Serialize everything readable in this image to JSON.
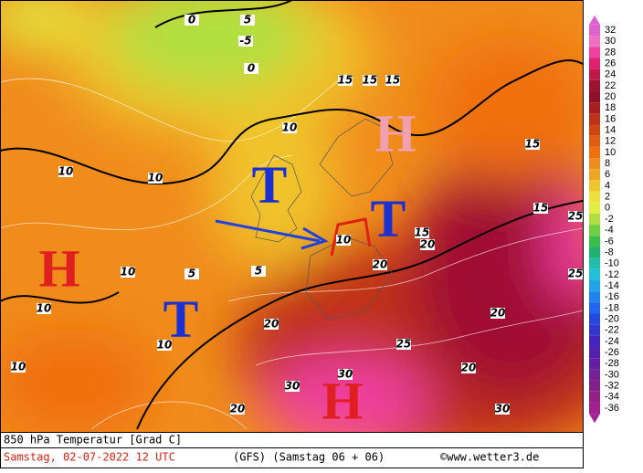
{
  "footer": {
    "title": "850 hPa Temperatur [Grad C]",
    "date": "Samstag, 02-07-2022  12 UTC",
    "model": "(GFS)   (Samstag 06 + 06)",
    "source": "©www.wetter3.de"
  },
  "colorbar": {
    "ticks": [
      32,
      30,
      28,
      26,
      24,
      22,
      20,
      18,
      16,
      14,
      12,
      10,
      8,
      6,
      4,
      2,
      0,
      -2,
      -4,
      -6,
      -8,
      -10,
      -12,
      -14,
      -16,
      -18,
      -20,
      -22,
      -24,
      -26,
      -28,
      -30,
      -32,
      -34,
      -36
    ],
    "colors": [
      "#e060d0",
      "#f070c0",
      "#f040a0",
      "#e02070",
      "#c01848",
      "#a01030",
      "#901028",
      "#a81c20",
      "#c03018",
      "#d04410",
      "#e05c10",
      "#f07010",
      "#f08c1c",
      "#f0a424",
      "#f0c42c",
      "#f0e03c",
      "#e0f040",
      "#b0e040",
      "#70d040",
      "#38c048",
      "#20b070",
      "#20c0a8",
      "#20c0d8",
      "#20a4e8",
      "#2084f0",
      "#2064f0",
      "#2448e0",
      "#3434d0",
      "#4424c0",
      "#5420b0",
      "#6420a4",
      "#742098",
      "#84208c",
      "#942084",
      "#a42090"
    ]
  },
  "pressure_labels": [
    "H",
    "T",
    "T",
    "T",
    "H",
    "H"
  ],
  "contour_labels": [
    10,
    10,
    10,
    10,
    10,
    10,
    10,
    10,
    15,
    15,
    15,
    15,
    15,
    20,
    20,
    20,
    20,
    25,
    25,
    30,
    30,
    20,
    20,
    5,
    5,
    5,
    -5,
    0,
    0,
    15,
    25,
    30
  ]
}
